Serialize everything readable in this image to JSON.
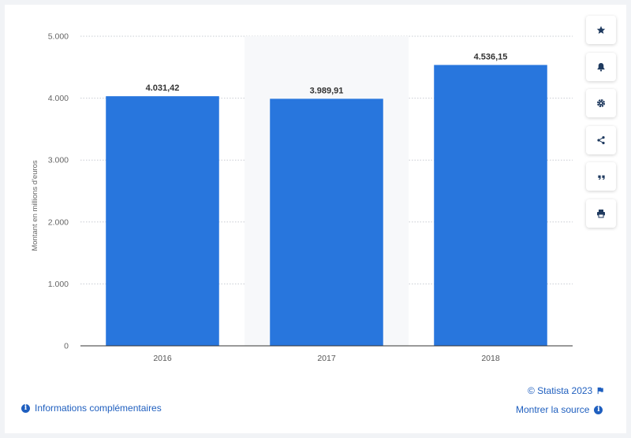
{
  "chart_data": {
    "type": "bar",
    "categories": [
      "2016",
      "2017",
      "2018"
    ],
    "values": [
      4031.42,
      3989.91,
      4536.15
    ],
    "value_labels": [
      "4.031,42",
      "3.989,91",
      "4.536,15"
    ],
    "ylabel": "Montant en millions d'euros",
    "ylim": [
      0,
      5000
    ],
    "yticks": [
      0,
      1000,
      2000,
      3000,
      4000,
      5000
    ],
    "ytick_labels": [
      "0",
      "1.000",
      "2.000",
      "3.000",
      "4.000",
      "5.000"
    ],
    "grid": true,
    "highlighted_category": "2017",
    "bar_color": "#2876dd",
    "highlight_band_color": "#f7f8fa",
    "grid_color": "#c8ccd2"
  },
  "toolbar": {
    "items": [
      {
        "name": "star-icon"
      },
      {
        "name": "bell-icon"
      },
      {
        "name": "gear-icon"
      },
      {
        "name": "share-icon"
      },
      {
        "name": "quote-icon"
      },
      {
        "name": "print-icon"
      }
    ]
  },
  "footer": {
    "copyright": "© Statista 2023",
    "info_label": "Informations complémentaires",
    "source_label": "Montrer la source",
    "link_color": "#1f5fbf"
  }
}
